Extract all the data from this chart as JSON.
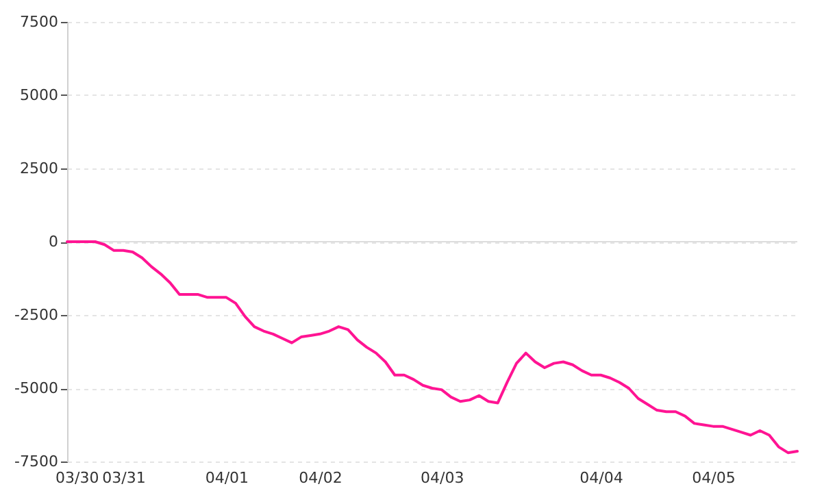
{
  "chart_data": {
    "type": "line",
    "categories": [
      null,
      "03/30",
      null,
      null,
      null,
      null,
      "03/31",
      null,
      null,
      null,
      null,
      null,
      null,
      null,
      null,
      null,
      null,
      "04/01",
      null,
      null,
      null,
      null,
      null,
      null,
      null,
      null,
      null,
      "04/02",
      null,
      null,
      null,
      null,
      null,
      null,
      null,
      null,
      null,
      null,
      null,
      null,
      "04/03",
      null,
      null,
      null,
      null,
      null,
      null,
      null,
      null,
      null,
      null,
      null,
      null,
      null,
      null,
      null,
      null,
      "04/04",
      null,
      null,
      null,
      null,
      null,
      null,
      null,
      null,
      null,
      null,
      null,
      "04/05",
      null,
      null,
      null,
      null,
      null,
      null,
      null,
      null,
      null
    ],
    "series": [
      {
        "color": "#ff1493",
        "values": [
          0,
          0,
          0,
          0,
          -100,
          -300,
          -300,
          -350,
          -550,
          -850,
          -1100,
          -1400,
          -1800,
          -1800,
          -1800,
          -1900,
          -1900,
          -1900,
          -2100,
          -2550,
          -2900,
          -3050,
          -3150,
          -3300,
          -3450,
          -3250,
          -3200,
          -3150,
          -3050,
          -2900,
          -3000,
          -3350,
          -3600,
          -3800,
          -4100,
          -4550,
          -4550,
          -4700,
          -4900,
          -5000,
          -5050,
          -5300,
          -5450,
          -5400,
          -5250,
          -5450,
          -5500,
          -4800,
          -4150,
          -3800,
          -4100,
          -4300,
          -4150,
          -4100,
          -4200,
          -4400,
          -4550,
          -4550,
          -4650,
          -4800,
          -5000,
          -5350,
          -5550,
          -5750,
          -5800,
          -5800,
          -5950,
          -6200,
          -6250,
          -6300,
          -6300,
          -6400,
          -6500,
          -6600,
          -6450,
          -6600,
          -7000,
          -7200,
          -7150
        ]
      }
    ],
    "ylim": [
      -7500,
      7500
    ],
    "yticks": [
      -7500,
      -5000,
      -2500,
      0,
      2500,
      5000,
      7500
    ],
    "grid": "y",
    "marker": "none",
    "line_style": "solid",
    "ref_lines": [
      {
        "axis": "y",
        "value": 0,
        "color": "#dddddd"
      }
    ]
  }
}
